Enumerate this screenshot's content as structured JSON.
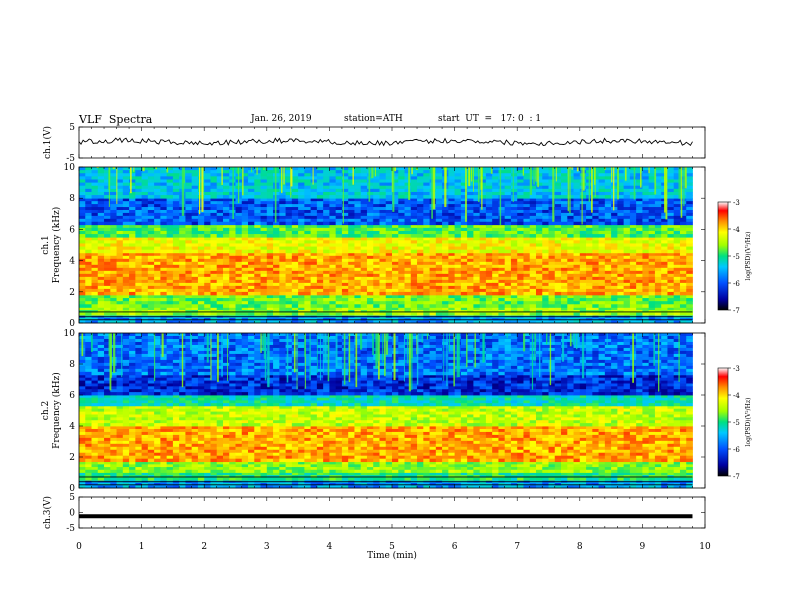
{
  "header": {
    "title": "VLF  Spectra",
    "date": "Jan. 26, 2019",
    "station": "station=ATH",
    "start": "start  UT  =   17: 0  : 1"
  },
  "chart_data": [
    {
      "type": "line",
      "panel": "ch1-waveform",
      "ylabel": "ch.1(V)",
      "ylim": [
        -5,
        5
      ],
      "yticks": [
        "5",
        "-5"
      ],
      "x_range_min": [
        0,
        9.8
      ],
      "level_v": 0.2,
      "color": "#000000"
    },
    {
      "type": "heatmap",
      "panel": "ch1-spectrogram",
      "ylabel": "ch.1\nFrequency (kHz)",
      "ylim": [
        0,
        10
      ],
      "yticks": [
        "0",
        "2",
        "4",
        "6",
        "8",
        "10"
      ],
      "colorbar": {
        "label": "log(PSD)(V²/Hz)",
        "ticks": [
          "-3",
          "-4",
          "-5",
          "-6",
          "-7"
        ],
        "range": [
          -7,
          -3
        ]
      },
      "bands_khz_level": [
        {
          "f0": 0,
          "f1": 0.5,
          "level": -5.8
        },
        {
          "f0": 0.5,
          "f1": 1.0,
          "level": -4.8
        },
        {
          "f0": 1.0,
          "f1": 1.8,
          "level": -4.9
        },
        {
          "f0": 1.8,
          "f1": 4.5,
          "level": -4.0
        },
        {
          "f0": 4.5,
          "f1": 5.5,
          "level": -4.4
        },
        {
          "f0": 5.5,
          "f1": 6.3,
          "level": -5.0
        },
        {
          "f0": 6.3,
          "f1": 8.0,
          "level": -6.1
        },
        {
          "f0": 8.0,
          "f1": 10.0,
          "level": -5.6
        }
      ]
    },
    {
      "type": "heatmap",
      "panel": "ch2-spectrogram",
      "ylabel": "ch.2\nFrequency (kHz)",
      "ylim": [
        0,
        10
      ],
      "yticks": [
        "0",
        "2",
        "4",
        "6",
        "8",
        "10"
      ],
      "colorbar": {
        "label": "log(PSD)(V²/Hz)",
        "ticks": [
          "-3",
          "-4",
          "-5",
          "-6",
          "-7"
        ],
        "range": [
          -7,
          -3
        ]
      },
      "bands_khz_level": [
        {
          "f0": 0,
          "f1": 0.5,
          "level": -5.8
        },
        {
          "f0": 0.5,
          "f1": 1.0,
          "level": -5.2
        },
        {
          "f0": 1.0,
          "f1": 1.7,
          "level": -4.8
        },
        {
          "f0": 1.7,
          "f1": 4.0,
          "level": -4.0
        },
        {
          "f0": 4.0,
          "f1": 5.3,
          "level": -4.6
        },
        {
          "f0": 5.3,
          "f1": 6.0,
          "level": -5.4
        },
        {
          "f0": 6.0,
          "f1": 7.3,
          "level": -6.3
        },
        {
          "f0": 7.3,
          "f1": 10.0,
          "level": -6.0
        }
      ]
    },
    {
      "type": "line",
      "panel": "ch3-waveform",
      "ylabel": "ch.3(V)",
      "ylim": [
        -5,
        5
      ],
      "yticks": [
        "5",
        "0",
        "-5"
      ],
      "x_range_min": [
        0,
        9.8
      ],
      "level_v": -1.2,
      "color": "#000000"
    }
  ],
  "xaxis": {
    "label": "Time  (min)",
    "ticks": [
      "0",
      "1",
      "2",
      "3",
      "4",
      "5",
      "6",
      "7",
      "8",
      "9",
      "10"
    ],
    "range": [
      0,
      10
    ]
  },
  "colors": {
    "colormap": [
      "#000000",
      "#0000a0",
      "#0050ff",
      "#00c8ff",
      "#00e080",
      "#a0ff00",
      "#ffff00",
      "#ff9000",
      "#ff0000",
      "#ffffff"
    ]
  }
}
